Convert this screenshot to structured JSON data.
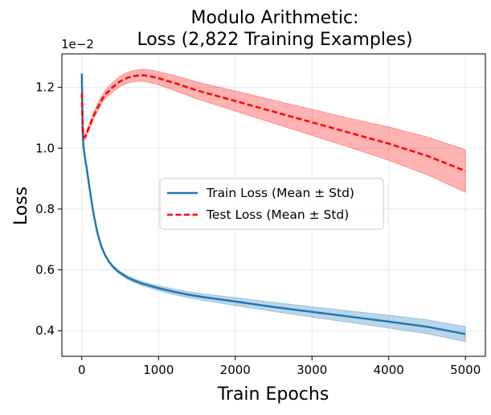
{
  "chart_data": {
    "type": "line",
    "title_line1": "Modulo Arithmetic:",
    "title_line2": "Loss (2,822 Training Examples)",
    "xlabel": "Train Epochs",
    "ylabel": "Loss",
    "y_scale_label": "1e−2",
    "xlim": [
      -260,
      5260
    ],
    "ylim": [
      0.316,
      1.31
    ],
    "xticks": [
      0,
      1000,
      2000,
      3000,
      4000,
      5000
    ],
    "xtick_labels": [
      "0",
      "1000",
      "2000",
      "3000",
      "4000",
      "5000"
    ],
    "yticks": [
      0.4,
      0.6,
      0.8,
      1.0,
      1.2
    ],
    "ytick_labels": [
      "0.4",
      "0.6",
      "0.8",
      "1.0",
      "1.2"
    ],
    "grid": true,
    "legend_position": "center-right",
    "series": [
      {
        "name": "Train Loss (Mean ± Std)",
        "color": "#1f77b4",
        "band_color": "#1f77b4",
        "style": "solid",
        "x": [
          0,
          10,
          20,
          40,
          60,
          80,
          100,
          130,
          160,
          200,
          250,
          300,
          350,
          400,
          450,
          500,
          600,
          700,
          800,
          900,
          1000,
          1200,
          1400,
          1600,
          1800,
          2000,
          2500,
          3000,
          3500,
          4000,
          4500,
          5000
        ],
        "mean": [
          1.245,
          1.06,
          1.01,
          0.97,
          0.94,
          0.905,
          0.87,
          0.82,
          0.775,
          0.725,
          0.68,
          0.65,
          0.628,
          0.612,
          0.6,
          0.59,
          0.574,
          0.563,
          0.554,
          0.547,
          0.54,
          0.528,
          0.518,
          0.51,
          0.503,
          0.496,
          0.478,
          0.462,
          0.446,
          0.43,
          0.413,
          0.389
        ],
        "std": [
          0.003,
          0.003,
          0.003,
          0.003,
          0.003,
          0.003,
          0.003,
          0.003,
          0.003,
          0.003,
          0.004,
          0.004,
          0.004,
          0.005,
          0.005,
          0.005,
          0.006,
          0.006,
          0.007,
          0.007,
          0.008,
          0.009,
          0.01,
          0.011,
          0.012,
          0.013,
          0.015,
          0.017,
          0.019,
          0.021,
          0.023,
          0.025
        ]
      },
      {
        "name": "Test Loss (Mean ± Std)",
        "color": "#ff0000",
        "band_color": "#ff0000",
        "style": "dashed",
        "x": [
          0,
          10,
          20,
          30,
          50,
          80,
          120,
          160,
          200,
          250,
          300,
          400,
          500,
          600,
          700,
          800,
          900,
          1000,
          1200,
          1500,
          2000,
          2500,
          3000,
          3500,
          4000,
          4500,
          5000
        ],
        "mean": [
          1.18,
          1.09,
          1.04,
          1.035,
          1.04,
          1.06,
          1.085,
          1.11,
          1.13,
          1.155,
          1.175,
          1.2,
          1.22,
          1.232,
          1.238,
          1.24,
          1.236,
          1.23,
          1.215,
          1.19,
          1.155,
          1.12,
          1.085,
          1.05,
          1.015,
          0.975,
          0.925
        ],
        "std": [
          0.01,
          0.01,
          0.01,
          0.01,
          0.01,
          0.01,
          0.01,
          0.011,
          0.012,
          0.013,
          0.014,
          0.016,
          0.017,
          0.018,
          0.019,
          0.02,
          0.021,
          0.022,
          0.025,
          0.028,
          0.033,
          0.038,
          0.043,
          0.048,
          0.055,
          0.062,
          0.07
        ]
      }
    ]
  }
}
